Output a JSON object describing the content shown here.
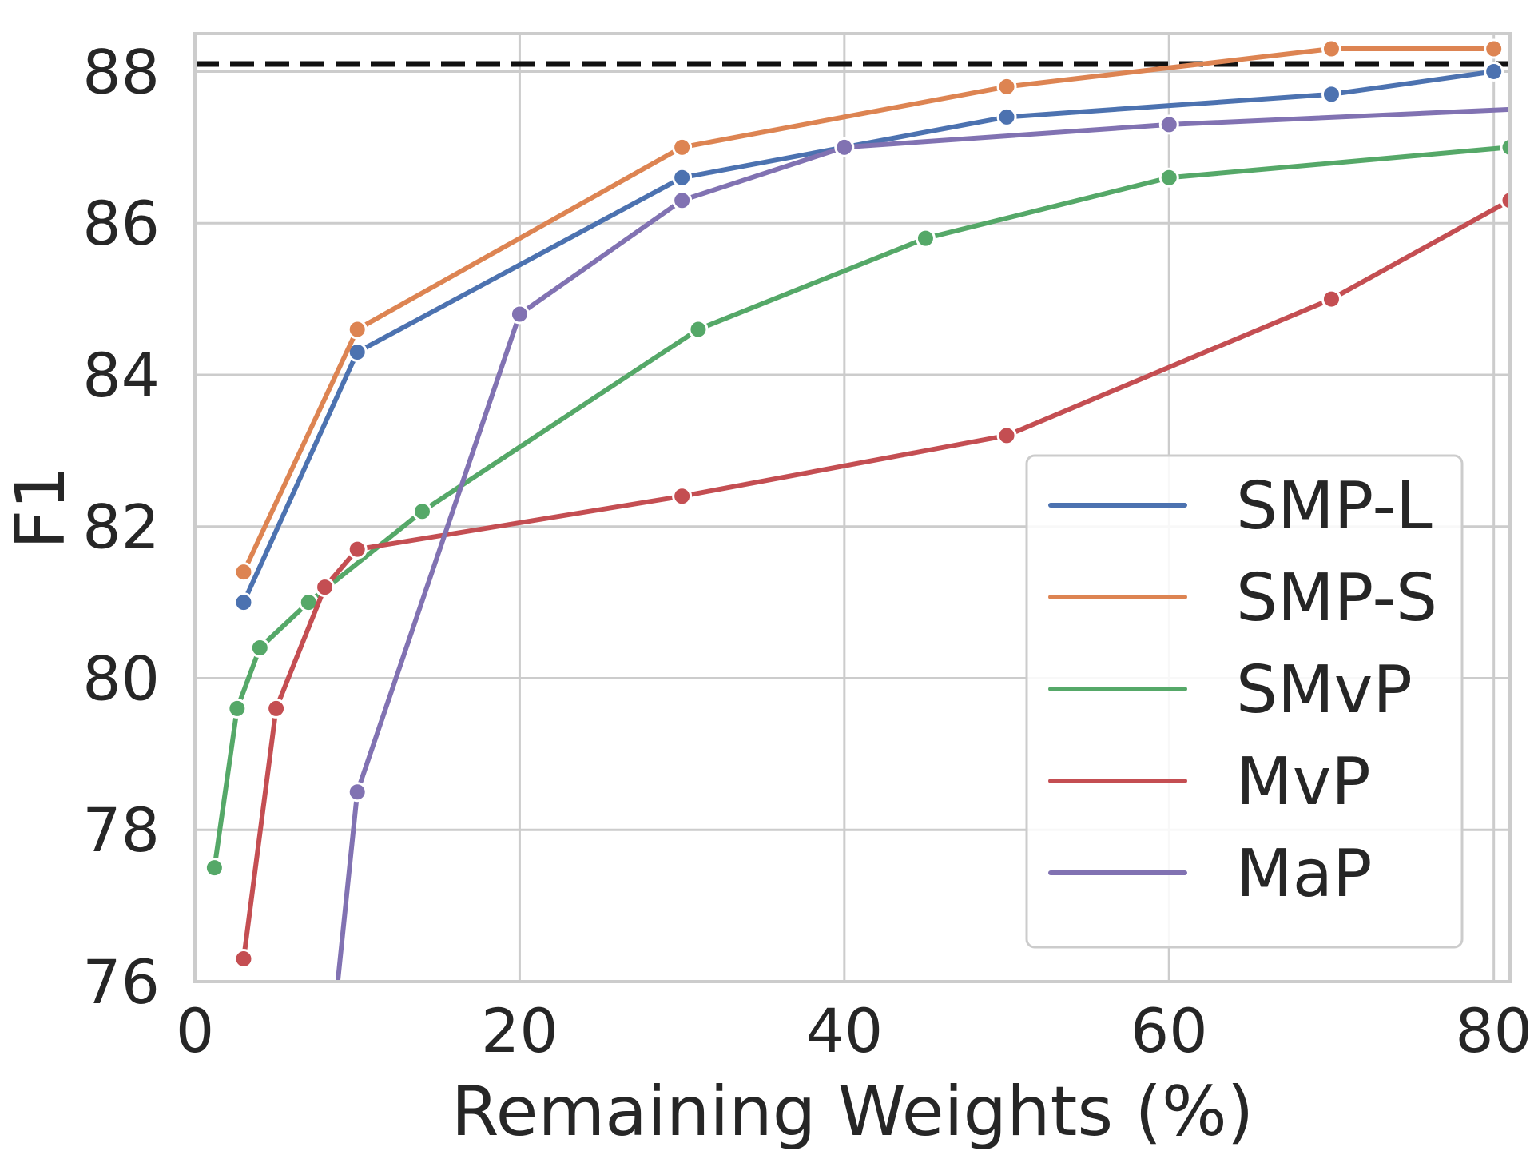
{
  "chart_data": {
    "type": "line",
    "title": "",
    "xlabel": "Remaining Weights (%)",
    "ylabel": "F1",
    "xlim": [
      0,
      81
    ],
    "ylim": [
      76,
      88.5
    ],
    "xticks": [
      0,
      20,
      40,
      60,
      80
    ],
    "yticks": [
      76,
      78,
      80,
      82,
      84,
      86,
      88
    ],
    "grid": true,
    "legend_position": "lower-right",
    "baseline": {
      "style": "dashed",
      "color": "#111111",
      "y": 88.1
    },
    "series": [
      {
        "name": "SMP-L",
        "color": "#4c72b0",
        "x": [
          3,
          10,
          30,
          40,
          50,
          70,
          80
        ],
        "y": [
          81.0,
          84.3,
          86.6,
          87.0,
          87.4,
          87.7,
          88.0
        ]
      },
      {
        "name": "SMP-S",
        "color": "#dd8452",
        "x": [
          3,
          10,
          30,
          50,
          70,
          80
        ],
        "y": [
          81.4,
          84.6,
          87.0,
          87.8,
          88.3,
          88.3
        ]
      },
      {
        "name": "SMvP",
        "color": "#55a868",
        "x": [
          1.2,
          2.6,
          4,
          7,
          14,
          31,
          45,
          60,
          81
        ],
        "y": [
          77.5,
          79.6,
          80.4,
          81.0,
          82.2,
          84.6,
          85.8,
          86.6,
          87.0
        ]
      },
      {
        "name": "MvP",
        "color": "#c44e52",
        "x": [
          3,
          5,
          8,
          10,
          30,
          50,
          70,
          81
        ],
        "y": [
          76.3,
          79.6,
          81.2,
          81.7,
          82.4,
          83.2,
          85.0,
          86.3
        ]
      },
      {
        "name": "MaP",
        "color": "#8172b2",
        "x": [
          8.8,
          10,
          20,
          30,
          40,
          60,
          81
        ],
        "y": [
          76.0,
          78.5,
          84.8,
          86.3,
          87.0,
          87.3,
          87.5
        ],
        "marker_mask": [
          false,
          true,
          true,
          true,
          true,
          true,
          false
        ]
      }
    ]
  }
}
